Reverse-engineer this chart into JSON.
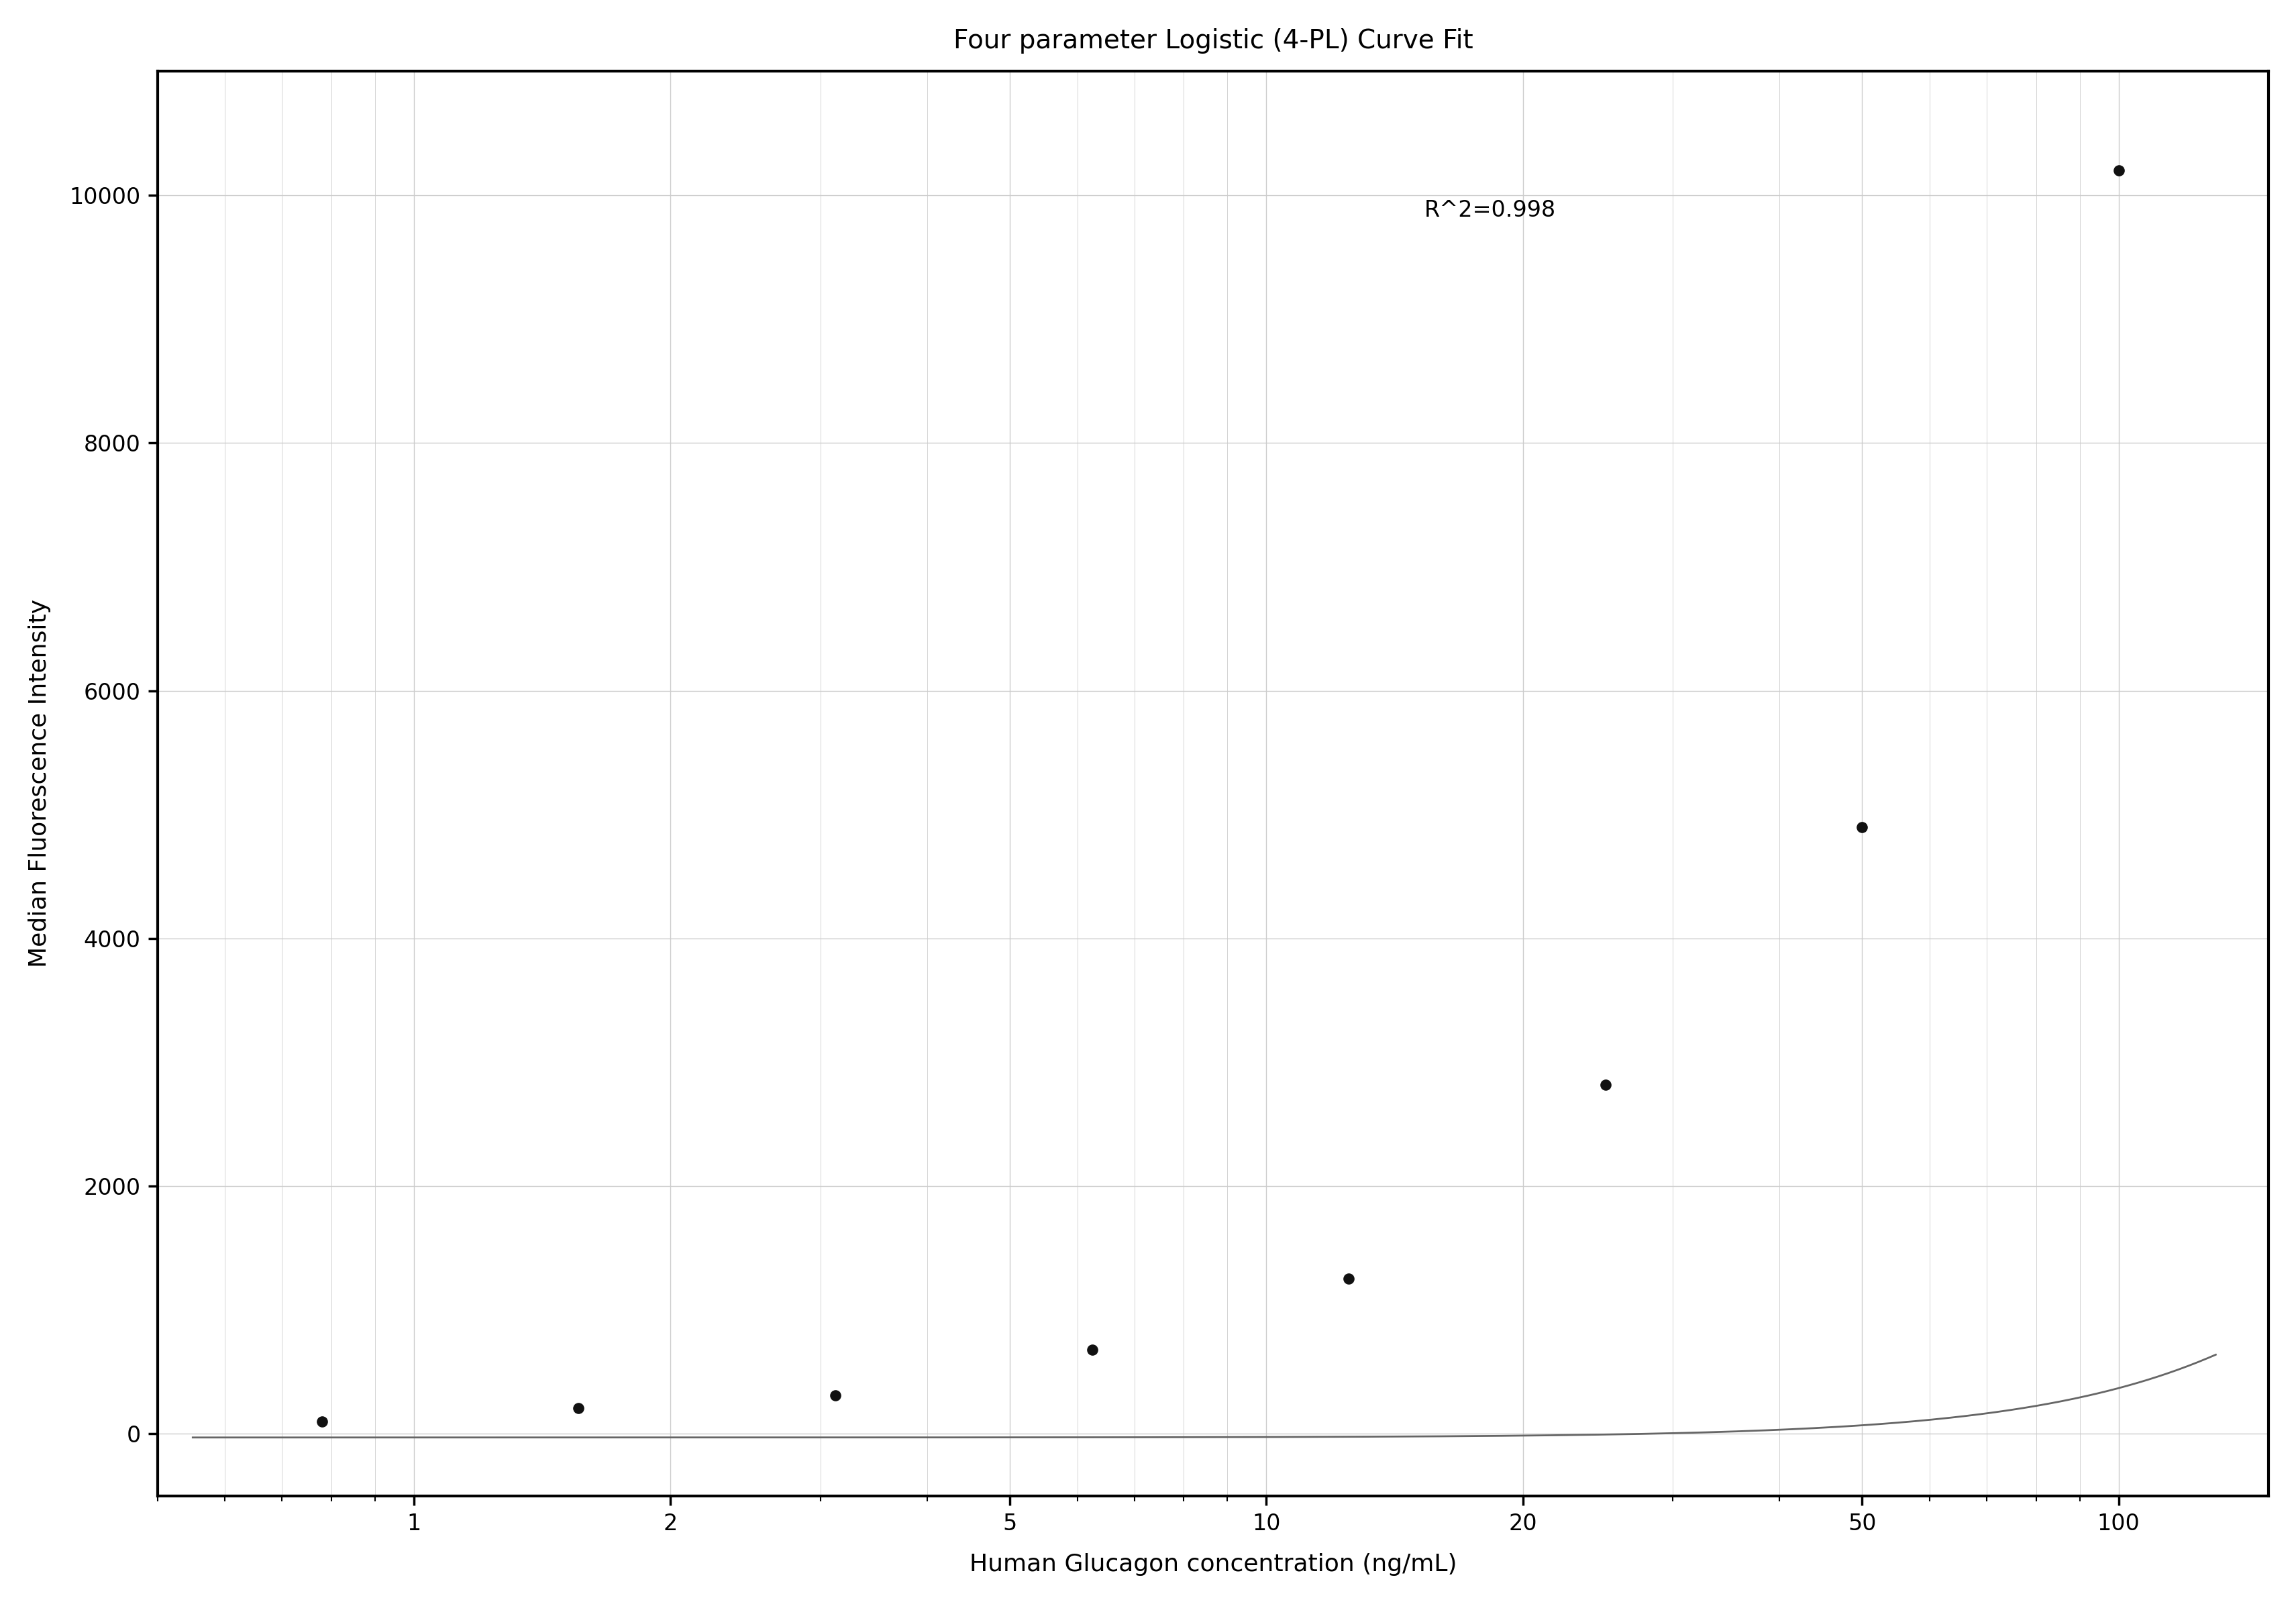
{
  "title": "Four parameter Logistic (4-PL) Curve Fit",
  "xlabel": "Human Glucagon concentration (ng/mL)",
  "ylabel": "Median Fluorescence Intensity",
  "r2_text": "R^2=0.998",
  "data_x": [
    0.78,
    1.56,
    3.12,
    6.25,
    12.5,
    25.0,
    50.0,
    100.0
  ],
  "data_y": [
    100,
    205,
    310,
    680,
    1250,
    2820,
    4900,
    10200
  ],
  "xlim": [
    0.5,
    150
  ],
  "ylim": [
    -500,
    11000
  ],
  "yticks": [
    0,
    2000,
    4000,
    6000,
    8000,
    10000
  ],
  "xticks": [
    1,
    2,
    5,
    10,
    20,
    50,
    100
  ],
  "curve_color": "#666666",
  "dot_color": "#111111",
  "grid_color": "#cccccc",
  "background_color": "#ffffff",
  "title_fontsize": 28,
  "label_fontsize": 26,
  "tick_fontsize": 24,
  "annotation_fontsize": 24,
  "4pl_A": -30.0,
  "4pl_B": 2.05,
  "4pl_C": 550.0,
  "4pl_D": 13500.0
}
